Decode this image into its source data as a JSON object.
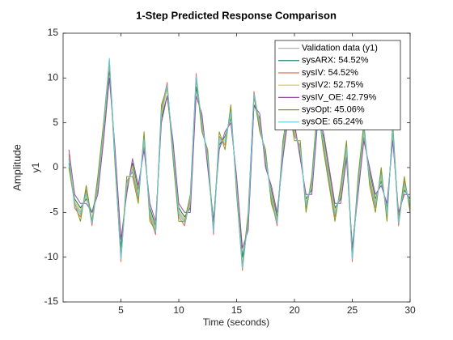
{
  "chart_data": {
    "type": "line",
    "title": "1-Step Predicted Response Comparison",
    "xlabel": "Time (seconds)",
    "ylabel": "Amplitude",
    "output_label": "y1",
    "legend": "northeast",
    "grid": false,
    "xlim": [
      0,
      30
    ],
    "xticks": [
      5,
      10,
      15,
      20,
      25,
      30
    ],
    "ylim": [
      -15,
      15
    ],
    "yticks": [
      -15,
      -10,
      -5,
      0,
      5,
      10,
      15
    ],
    "x": [
      0.5,
      1,
      1.5,
      2,
      2.5,
      3,
      3.5,
      4,
      4.5,
      5,
      5.5,
      6,
      6.5,
      7,
      7.5,
      8,
      8.5,
      9,
      9.5,
      10,
      10.5,
      11,
      11.5,
      12,
      12.5,
      13,
      13.5,
      14,
      14.5,
      15,
      15.5,
      16,
      16.5,
      17,
      17.5,
      18,
      18.5,
      19,
      19.5,
      20,
      20.5,
      21,
      21.5,
      22,
      22.5,
      23,
      23.5,
      24,
      24.5,
      25,
      25.5,
      26,
      26.5,
      27,
      27.5,
      28,
      28.5,
      29,
      29.5,
      30
    ],
    "series": [
      {
        "name": "Validation data (y1)",
        "color": "#b3b3b3",
        "values": [
          1,
          -4,
          -5,
          -3,
          -6,
          -2,
          4,
          12,
          1,
          -10,
          -2,
          0,
          -3,
          3,
          -5,
          -7,
          6,
          9,
          2,
          -5,
          -6,
          -4,
          10,
          5,
          1,
          -7,
          3,
          3,
          6,
          -2,
          -11,
          -6,
          8,
          5,
          1,
          -3,
          -6,
          2,
          7,
          4,
          2,
          -4,
          -2,
          6,
          3,
          -1,
          -5,
          -3,
          2,
          -10,
          -2,
          4,
          -1,
          -4,
          -1,
          -5,
          4,
          -6,
          -2,
          -4
        ]
      },
      {
        "name": "sysARX: 54.52%",
        "color": "#00735c",
        "values": [
          0.5,
          -3.5,
          -4.5,
          -3.5,
          -5,
          -2.5,
          3.5,
          11,
          1.5,
          -9,
          -2.5,
          0.5,
          -2.5,
          2.5,
          -4.5,
          -6.5,
          5.5,
          8,
          2.5,
          -4.5,
          -5.5,
          -4.5,
          9,
          5.5,
          0.5,
          -6,
          2.5,
          3.5,
          5.5,
          -1.5,
          -10,
          -6.5,
          7,
          5.5,
          0.5,
          -2.5,
          -5.5,
          1.5,
          6.5,
          4.5,
          1.5,
          -3.5,
          -2.5,
          5.5,
          3.5,
          -0.5,
          -4.5,
          -3.5,
          1.5,
          -9,
          -2.5,
          3.5,
          -0.5,
          -3.5,
          -1.5,
          -4.5,
          3.5,
          -5.5,
          -2.5,
          -3.5
        ]
      },
      {
        "name": "sysIV: 54.52%",
        "color": "#e0714f",
        "values": [
          1.5,
          -4.5,
          -5.5,
          -2.5,
          -6.5,
          -1.5,
          4.5,
          11.5,
          0.5,
          -10.5,
          -1.5,
          -0.5,
          -3.5,
          3.5,
          -5.5,
          -7.5,
          6.5,
          9.5,
          1.5,
          -5.5,
          -6.5,
          -3.5,
          10.5,
          4.5,
          1.5,
          -7.5,
          3.5,
          2.5,
          6.5,
          -2.5,
          -11.5,
          -5.5,
          8.5,
          4.5,
          1.5,
          -3.5,
          -6.5,
          2.5,
          7.5,
          3.5,
          2.5,
          -4.5,
          -1.5,
          6.5,
          2.5,
          -1.5,
          -5.5,
          -2.5,
          2.5,
          -10.5,
          -1.5,
          4.5,
          -1.5,
          -4.5,
          -0.5,
          -5.5,
          4.5,
          -6.5,
          -1.5,
          -4.5
        ]
      },
      {
        "name": "sysIV2: 52.75%",
        "color": "#e6c13c",
        "values": [
          1.2,
          -3.8,
          -4.8,
          -3.2,
          -5.8,
          -2.2,
          3.8,
          11.8,
          1.2,
          -9.8,
          -2.2,
          0.2,
          -2.8,
          2.8,
          -4.8,
          -6.8,
          5.8,
          8.8,
          2.2,
          -4.8,
          -5.8,
          -4.2,
          9.8,
          5.2,
          0.8,
          -6.8,
          2.8,
          3.2,
          5.8,
          -1.8,
          -10.8,
          -6.2,
          7.8,
          5.2,
          0.8,
          -2.8,
          -5.8,
          1.8,
          6.8,
          4.2,
          1.8,
          -3.8,
          -2.2,
          5.8,
          3.2,
          -0.8,
          -4.8,
          -3.2,
          1.8,
          -9.8,
          -2.2,
          3.8,
          -0.8,
          -3.8,
          -1.2,
          -4.8,
          3.8,
          -5.8,
          -2.2,
          -3.8
        ]
      },
      {
        "name": "sysIV_OE:  42.79%",
        "color": "#9b4fa3",
        "values": [
          2,
          -3,
          -4,
          -4,
          -5,
          -3,
          3,
          10,
          2,
          -8,
          -3,
          1,
          -2,
          2,
          -4,
          -6,
          5,
          8,
          3,
          -4,
          -5,
          -5,
          8,
          6,
          0,
          -6,
          2,
          4,
          5,
          -1,
          -9,
          -7,
          7,
          6,
          0,
          -2,
          -5,
          1,
          6,
          5,
          1,
          -3,
          -3,
          5,
          4,
          0,
          -4,
          -4,
          1,
          -9,
          -3,
          3,
          0,
          -3,
          -2,
          -4,
          3,
          -5,
          -3,
          -3
        ]
      },
      {
        "name": "sysOpt: 45.06%",
        "color": "#7f9a1c",
        "values": [
          0,
          -4,
          -6,
          -2,
          -6,
          -1,
          5,
          12,
          0,
          -10,
          -1,
          -1,
          -4,
          4,
          -6,
          -7,
          7,
          9,
          1,
          -6,
          -6,
          -3,
          10,
          4,
          2,
          -7,
          4,
          2,
          7,
          -3,
          -11,
          -5,
          8,
          4,
          2,
          -4,
          -6,
          3,
          7,
          3,
          3,
          -5,
          -1,
          7,
          2,
          -2,
          -6,
          -2,
          3,
          -10,
          -1,
          5,
          -2,
          -5,
          0,
          -6,
          5,
          -6,
          -1,
          -5
        ]
      },
      {
        "name": "sysOE: 65.24%",
        "color": "#5ec8e6",
        "values": [
          1,
          -4.2,
          -5.2,
          -2.8,
          -6.2,
          -1.8,
          4.2,
          12.2,
          0.8,
          -10.2,
          -1.8,
          -0.2,
          -3.2,
          3.2,
          -5.2,
          -7.2,
          6.2,
          9.2,
          1.8,
          -5.2,
          -6.2,
          -3.8,
          10.2,
          4.8,
          1.2,
          -7.2,
          3.2,
          2.8,
          6.2,
          -2.2,
          -11.2,
          -5.8,
          8.2,
          4.8,
          1.2,
          -3.2,
          -6.2,
          2.2,
          7.2,
          3.8,
          2.2,
          -4.2,
          -1.8,
          6.2,
          2.8,
          -1.2,
          -5.2,
          -2.8,
          2.2,
          -10.2,
          -1.8,
          4.2,
          -1.2,
          -4.2,
          -0.8,
          -5.2,
          4.2,
          -6.2,
          -1.8,
          -4.2
        ]
      }
    ]
  }
}
